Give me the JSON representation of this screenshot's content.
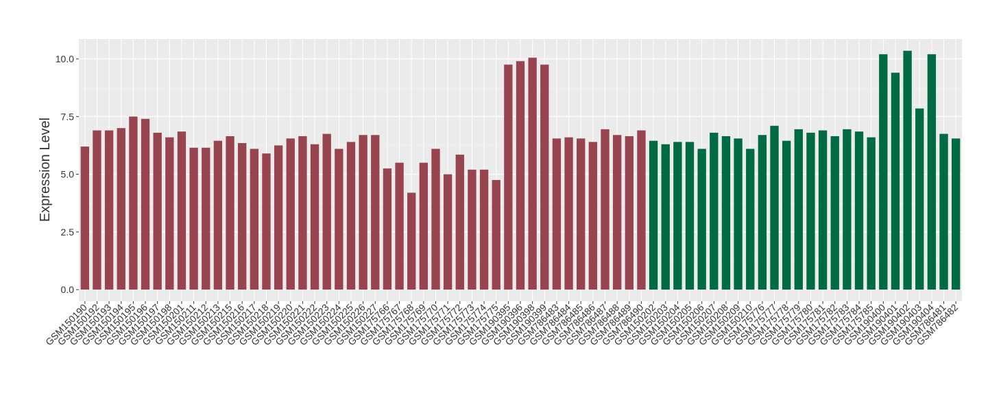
{
  "chart_data": {
    "type": "bar",
    "y_label": "Expression Level",
    "categories": [
      "GSM150190",
      "GSM150192",
      "GSM150193",
      "GSM150194",
      "GSM150195",
      "GSM150196",
      "GSM150197",
      "GSM150198",
      "GSM150201",
      "GSM150211",
      "GSM150212",
      "GSM150213",
      "GSM150215",
      "GSM150216",
      "GSM150217",
      "GSM150218",
      "GSM150219",
      "GSM150220",
      "GSM150221",
      "GSM150222",
      "GSM150223",
      "GSM150224",
      "GSM150225",
      "GSM150226",
      "GSM150227",
      "GSM175766",
      "GSM175767",
      "GSM175768",
      "GSM175769",
      "GSM175770",
      "GSM175771",
      "GSM175772",
      "GSM175773",
      "GSM175774",
      "GSM175775",
      "GSM190395",
      "GSM190396",
      "GSM190398",
      "GSM190399",
      "GSM786483",
      "GSM786484",
      "GSM786485",
      "GSM786486",
      "GSM786487",
      "GSM786488",
      "GSM786489",
      "GSM786490",
      "GSM150202",
      "GSM150203",
      "GSM150204",
      "GSM150205",
      "GSM150206",
      "GSM150207",
      "GSM150208",
      "GSM150209",
      "GSM150210",
      "GSM175776",
      "GSM175777",
      "GSM175778",
      "GSM175779",
      "GSM175780",
      "GSM175781",
      "GSM175782",
      "GSM175783",
      "GSM175784",
      "GSM175785",
      "GSM190400",
      "GSM190401",
      "GSM190402",
      "GSM190403",
      "GSM190404",
      "GSM786481",
      "GSM786482"
    ],
    "values": [
      6.2,
      6.9,
      6.9,
      7.0,
      7.5,
      7.4,
      6.8,
      6.6,
      6.85,
      6.15,
      6.15,
      6.45,
      6.65,
      6.35,
      6.1,
      5.9,
      6.25,
      6.55,
      6.65,
      6.3,
      6.75,
      6.1,
      6.4,
      6.7,
      6.7,
      5.25,
      5.5,
      4.2,
      5.5,
      6.1,
      5.0,
      5.85,
      5.2,
      5.2,
      4.75,
      9.75,
      9.9,
      10.05,
      9.75,
      6.55,
      6.6,
      6.55,
      6.4,
      6.95,
      6.7,
      6.65,
      6.9,
      6.45,
      6.3,
      6.4,
      6.4,
      6.1,
      6.8,
      6.65,
      6.55,
      6.1,
      6.7,
      7.1,
      6.45,
      6.95,
      6.8,
      6.9,
      6.65,
      6.95,
      6.85,
      6.6,
      10.2,
      9.4,
      10.35,
      7.85,
      10.2,
      6.75,
      6.55
    ],
    "colors": [
      "#98444f",
      "#98444f",
      "#98444f",
      "#98444f",
      "#98444f",
      "#98444f",
      "#98444f",
      "#98444f",
      "#98444f",
      "#98444f",
      "#98444f",
      "#98444f",
      "#98444f",
      "#98444f",
      "#98444f",
      "#98444f",
      "#98444f",
      "#98444f",
      "#98444f",
      "#98444f",
      "#98444f",
      "#98444f",
      "#98444f",
      "#98444f",
      "#98444f",
      "#98444f",
      "#98444f",
      "#98444f",
      "#98444f",
      "#98444f",
      "#98444f",
      "#98444f",
      "#98444f",
      "#98444f",
      "#98444f",
      "#98444f",
      "#98444f",
      "#98444f",
      "#98444f",
      "#98444f",
      "#98444f",
      "#98444f",
      "#98444f",
      "#98444f",
      "#98444f",
      "#98444f",
      "#98444f",
      "#006a43",
      "#006a43",
      "#006a43",
      "#006a43",
      "#006a43",
      "#006a43",
      "#006a43",
      "#006a43",
      "#006a43",
      "#006a43",
      "#006a43",
      "#006a43",
      "#006a43",
      "#006a43",
      "#006a43",
      "#006a43",
      "#006a43",
      "#006a43",
      "#006a43",
      "#006a43",
      "#006a43",
      "#006a43",
      "#006a43",
      "#006a43",
      "#006a43",
      "#006a43"
    ],
    "ylim": [
      -0.5,
      10.86
    ],
    "yticks": [
      {
        "value": 0,
        "label": "0.0"
      },
      {
        "value": 2.5,
        "label": "2.5"
      },
      {
        "value": 5,
        "label": "5.0"
      },
      {
        "value": 7.5,
        "label": "7.5"
      },
      {
        "value": 10,
        "label": "10.0"
      }
    ],
    "grid": true
  }
}
